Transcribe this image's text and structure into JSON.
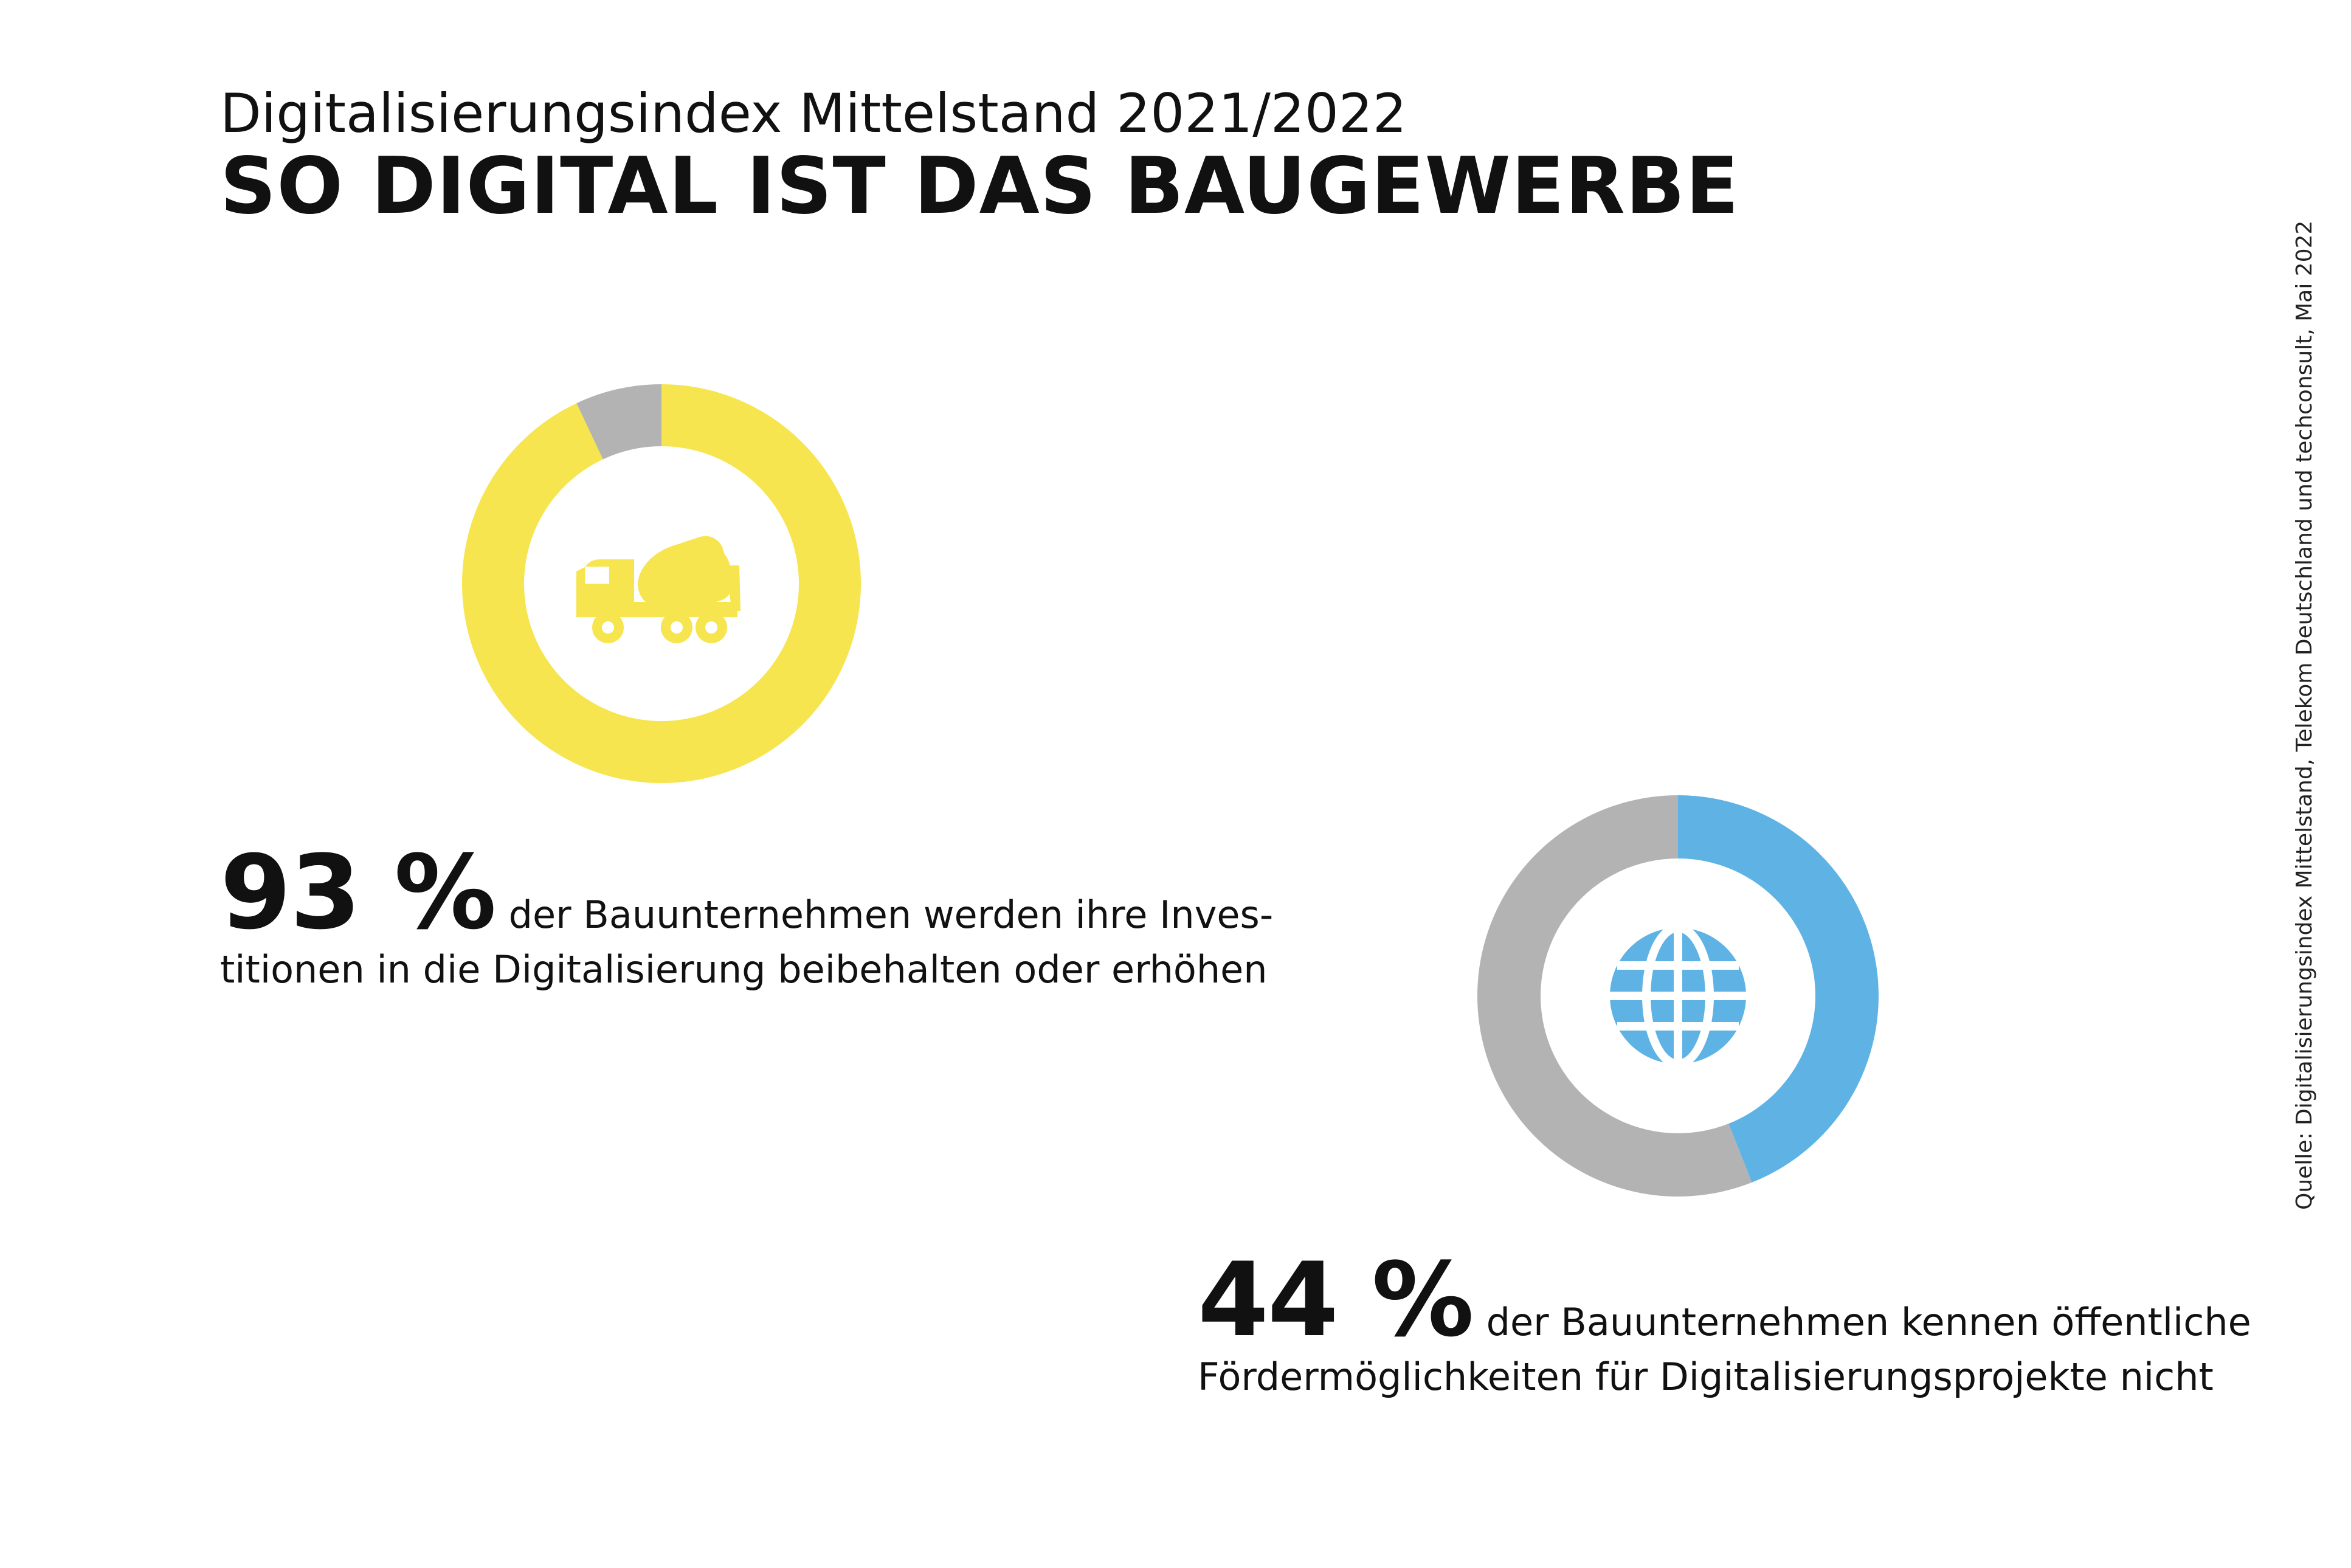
{
  "header": {
    "subtitle": "Digitalisierungsindex Mittelstand 2021/2022",
    "title": "SO DIGITAL IST DAS BAUGEWERBE"
  },
  "colors": {
    "yellow": "#F6E54E",
    "blue": "#5EB3E4",
    "grey": "#B3B3B3",
    "text": "#111111"
  },
  "chart_data": [
    {
      "type": "pie",
      "values": [
        93,
        7
      ],
      "colors": [
        "#F6E54E",
        "#B3B3B3"
      ],
      "icon": "concrete-mixer-truck-icon",
      "stat_value": "93 %",
      "stat_text_line1": "der Bauunternehmen werden ihre Inves-",
      "stat_text_line2": "titionen in die Digitalisierung beibehalten oder erhöhen"
    },
    {
      "type": "pie",
      "values": [
        44,
        56
      ],
      "colors": [
        "#5EB3E4",
        "#B3B3B3"
      ],
      "icon": "globe-icon",
      "stat_value": "44 %",
      "stat_text_line1": "der Bauunternehmen kennen öffentliche",
      "stat_text_line2": "Fördermöglichkeiten für Digitalisierungsprojekte nicht"
    }
  ],
  "source": "Quelle: Digitalisierungsindex Mittelstand, Telekom Deutschland und techconsult, Mai 2022"
}
